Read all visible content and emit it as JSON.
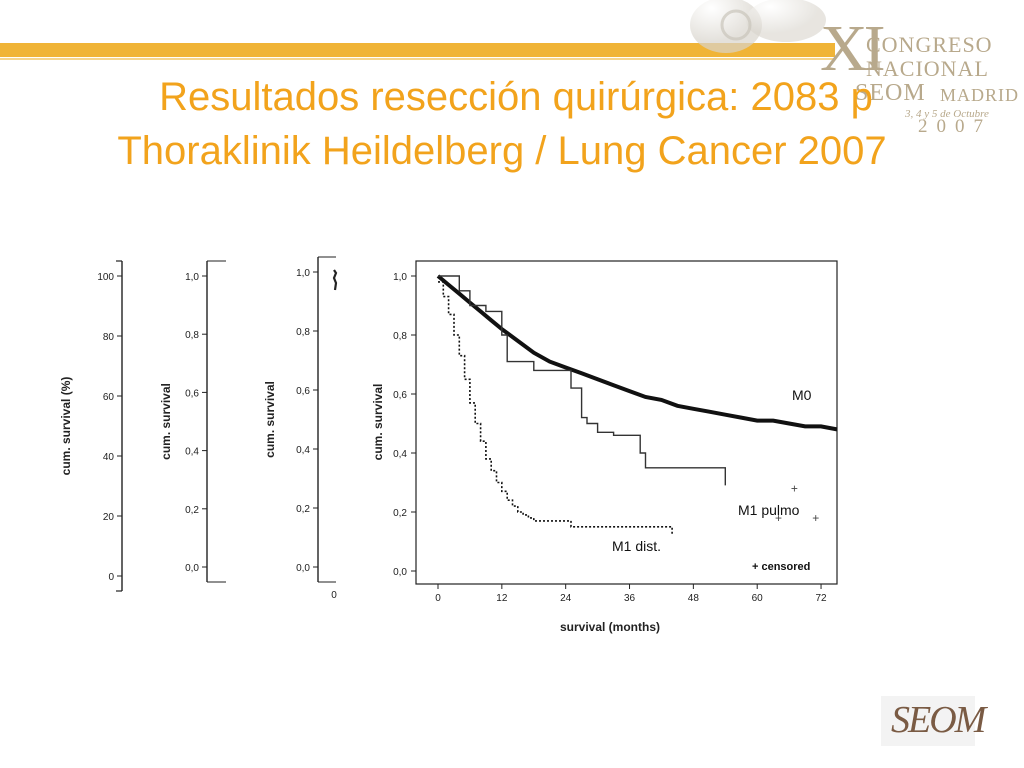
{
  "slide": {
    "title_line1": "Resultados resección quirúrgica: 2083 p",
    "title_line2": "Thoraklinik Heildelberg / Lung Cancer 2007",
    "accent_color": "#f2a31c"
  },
  "congress_logo": {
    "numeral": "XI",
    "line1": "CONGRESO",
    "line2": "NACIONAL",
    "line3": "SEOM",
    "line3b": "MADRID",
    "dates": "3, 4 y 5 de Octubre",
    "year": "2007"
  },
  "footer_logo": {
    "text": "SEOM",
    "icon": "seom-logo-icon"
  },
  "chart_data": [
    {
      "type": "line",
      "ylabel": "cum. survival (%)",
      "yticks": [
        "0",
        "20",
        "40",
        "60",
        "80",
        "100"
      ],
      "ylim": [
        0,
        100
      ]
    },
    {
      "type": "line",
      "ylabel": "cum. survival",
      "yticks": [
        "0,0",
        "0,2",
        "0,4",
        "0,6",
        "0,8",
        "1,0"
      ],
      "ylim": [
        0,
        1
      ]
    },
    {
      "type": "line",
      "ylabel": "cum. survival",
      "yticks": [
        "0,0",
        "0,2",
        "0,4",
        "0,6",
        "0,8",
        "1,0"
      ],
      "ylim": [
        0,
        1
      ],
      "xticks": [
        "0"
      ]
    },
    {
      "type": "line",
      "xlabel": "survival (months)",
      "ylabel": "cum. survival",
      "xticks": [
        "0",
        "12",
        "24",
        "36",
        "48",
        "60",
        "72"
      ],
      "yticks": [
        "0,0",
        "0,2",
        "0,4",
        "0,6",
        "0,8",
        "1,0"
      ],
      "xlim": [
        0,
        75
      ],
      "ylim": [
        0,
        1
      ],
      "legend_note": "+ censored",
      "series": [
        {
          "name": "M0",
          "style": "thick",
          "x": [
            0,
            2,
            4,
            6,
            8,
            10,
            12,
            15,
            18,
            21,
            24,
            27,
            30,
            33,
            36,
            39,
            42,
            45,
            48,
            51,
            54,
            57,
            60,
            63,
            66,
            69,
            72,
            75
          ],
          "y": [
            1.0,
            0.97,
            0.94,
            0.91,
            0.88,
            0.85,
            0.82,
            0.78,
            0.74,
            0.71,
            0.69,
            0.67,
            0.65,
            0.63,
            0.61,
            0.59,
            0.58,
            0.56,
            0.55,
            0.54,
            0.53,
            0.52,
            0.51,
            0.51,
            0.5,
            0.49,
            0.49,
            0.48
          ]
        },
        {
          "name": "M1 pulmo",
          "style": "step",
          "x": [
            0,
            3,
            4,
            6,
            9,
            12,
            13,
            18,
            25,
            27,
            28,
            30,
            33,
            38,
            39,
            50,
            54
          ],
          "y": [
            1.0,
            1.0,
            0.95,
            0.9,
            0.88,
            0.8,
            0.71,
            0.68,
            0.62,
            0.52,
            0.5,
            0.47,
            0.46,
            0.4,
            0.35,
            0.35,
            0.29
          ]
        },
        {
          "name": "M1 dist.",
          "style": "dotted-step",
          "x": [
            0,
            1,
            2,
            3,
            4,
            5,
            6,
            7,
            8,
            9,
            10,
            11,
            12,
            13,
            14,
            15,
            16,
            17,
            18,
            20,
            25,
            44
          ],
          "y": [
            0.98,
            0.93,
            0.87,
            0.8,
            0.73,
            0.65,
            0.57,
            0.5,
            0.44,
            0.38,
            0.34,
            0.3,
            0.27,
            0.24,
            0.22,
            0.2,
            0.19,
            0.18,
            0.17,
            0.17,
            0.15,
            0.12
          ]
        }
      ],
      "censored_marks": [
        {
          "x": 64,
          "y": 0.18
        },
        {
          "x": 71,
          "y": 0.18
        },
        {
          "x": 67,
          "y": 0.28
        }
      ]
    }
  ]
}
